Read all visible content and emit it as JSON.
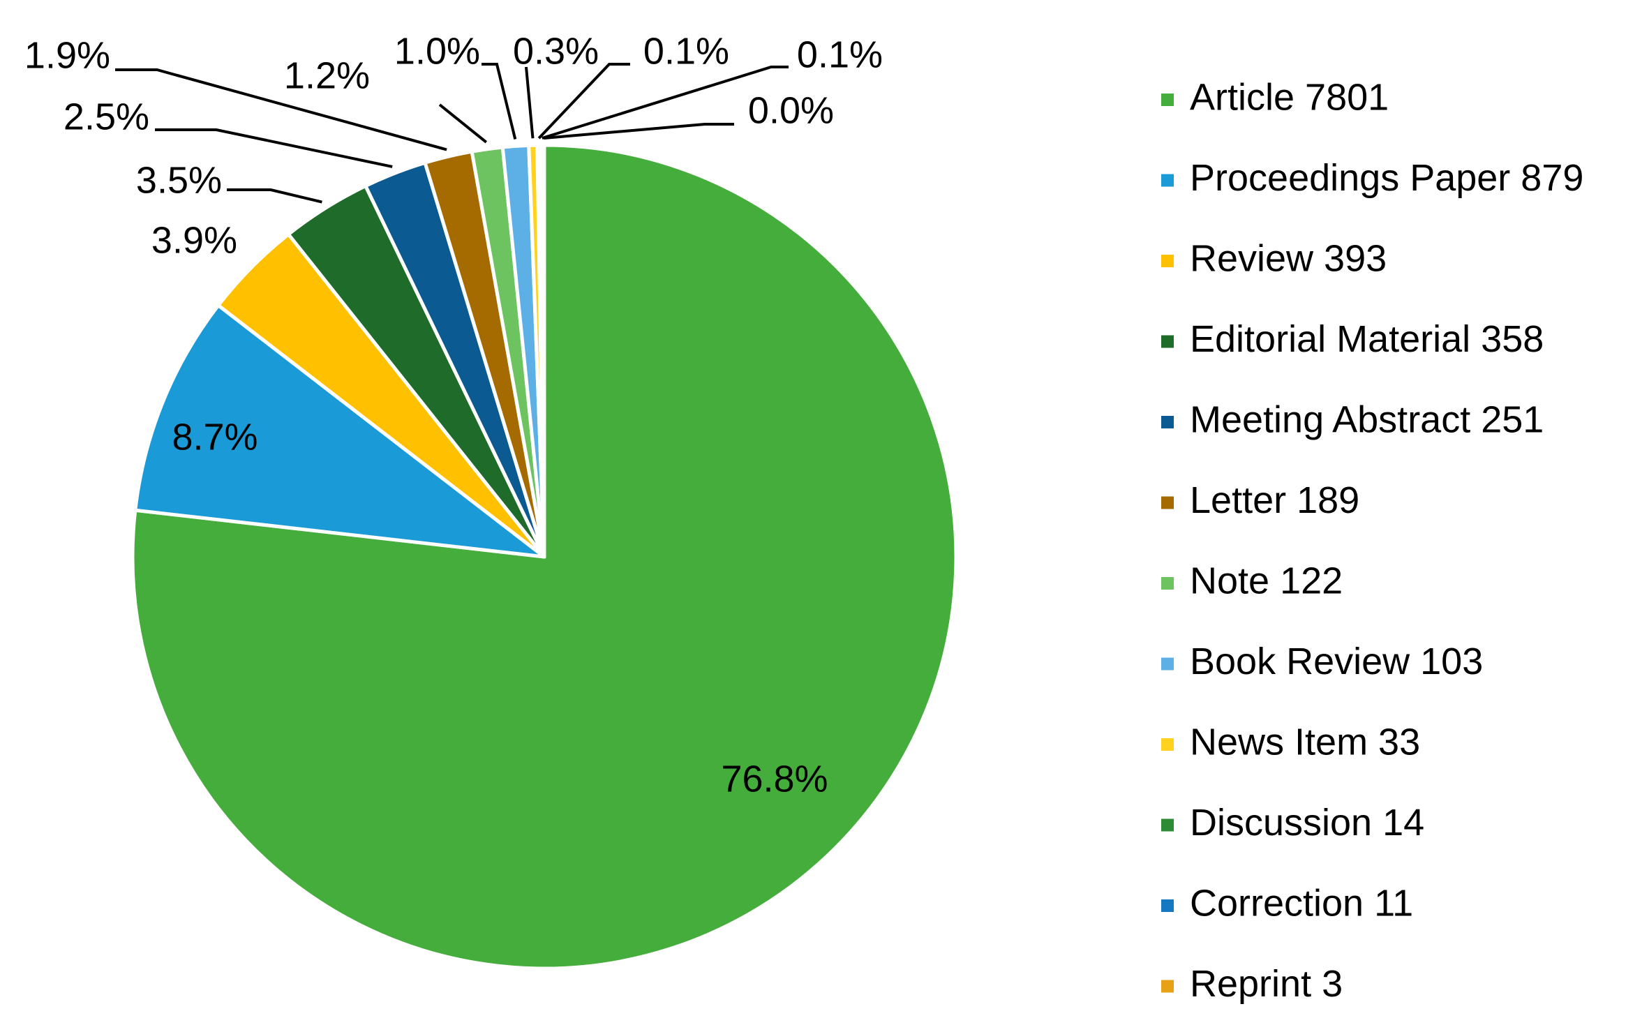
{
  "chart_data": {
    "type": "pie",
    "start_angle_deg": 0,
    "direction": "clockwise",
    "legend_position": "right",
    "slices": [
      {
        "label": "Article",
        "count": "7801",
        "value": 7801,
        "percent_label": "76.8%",
        "color": "#45ad3b"
      },
      {
        "label": "Proceedings Paper",
        "count": "879",
        "value": 879,
        "percent_label": "8.7%",
        "color": "#1a9bd7"
      },
      {
        "label": "Review",
        "count": "393",
        "value": 393,
        "percent_label": "3.9%",
        "color": "#ffc000"
      },
      {
        "label": "Editorial Material",
        "count": "358",
        "value": 358,
        "percent_label": "3.5%",
        "color": "#1f6b2a"
      },
      {
        "label": "Meeting Abstract",
        "count": "251",
        "value": 251,
        "percent_label": "2.5%",
        "color": "#0b5a91"
      },
      {
        "label": "Letter",
        "count": "189",
        "value": 189,
        "percent_label": "1.9%",
        "color": "#a66b00"
      },
      {
        "label": "Note",
        "count": "122",
        "value": 122,
        "percent_label": "1.2%",
        "color": "#6cc35f"
      },
      {
        "label": "Book Review",
        "count": "103",
        "value": 103,
        "percent_label": "1.0%",
        "color": "#5cb0e6"
      },
      {
        "label": "News Item",
        "count": "33",
        "value": 33,
        "percent_label": "0.3%",
        "color": "#ffd21f"
      },
      {
        "label": "Discussion",
        "count": "14",
        "value": 14,
        "percent_label": "0.1%",
        "color": "#2e8b35"
      },
      {
        "label": "Correction",
        "count": "11",
        "value": 11,
        "percent_label": "0.1%",
        "color": "#1479c0"
      },
      {
        "label": "Reprint",
        "count": "3",
        "value": 3,
        "percent_label": "0.0%",
        "color": "#e6a117"
      }
    ]
  }
}
